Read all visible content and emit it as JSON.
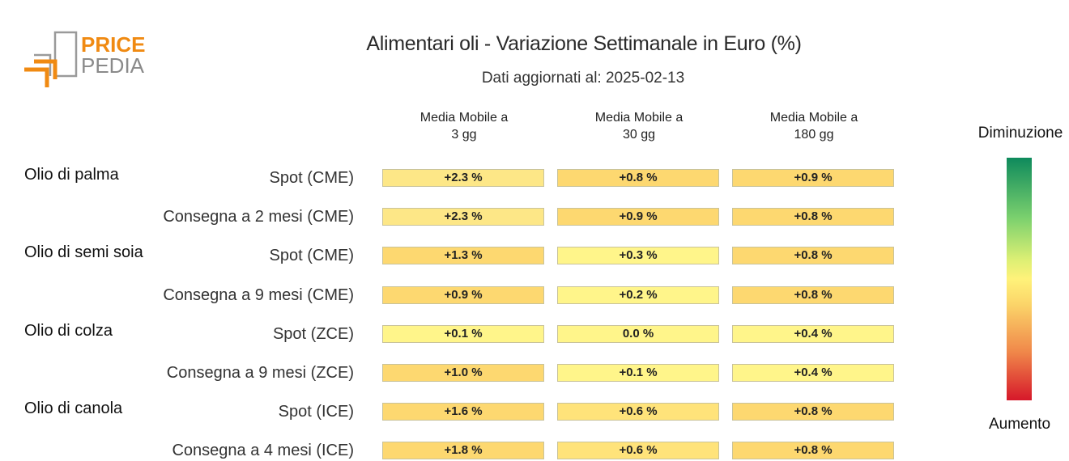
{
  "logo": {
    "text_top": "PRICE",
    "text_bottom": "PEDIA"
  },
  "chart_data": {
    "type": "table",
    "title": "Alimentari oli - Variazione Settimanale in Euro (%)",
    "subtitle": "Dati aggiornati al: 2025-02-13",
    "columns": [
      "Media Mobile a\n3 gg",
      "Media Mobile a\n30 gg",
      "Media Mobile a\n180 gg"
    ],
    "groups": [
      {
        "name": "Olio di palma",
        "rows": [
          {
            "label": "Spot (CME)",
            "values": [
              2.3,
              0.8,
              0.9
            ],
            "display": [
              "+2.3 %",
              "+0.8 %",
              "+0.9 %"
            ]
          },
          {
            "label": "Consegna a 2 mesi (CME)",
            "values": [
              2.3,
              0.9,
              0.8
            ],
            "display": [
              "+2.3 %",
              "+0.9 %",
              "+0.8 %"
            ]
          }
        ]
      },
      {
        "name": "Olio di semi soia",
        "rows": [
          {
            "label": "Spot (CME)",
            "values": [
              1.3,
              0.3,
              0.8
            ],
            "display": [
              "+1.3 %",
              "+0.3 %",
              "+0.8 %"
            ]
          },
          {
            "label": "Consegna a 9 mesi (CME)",
            "values": [
              0.9,
              0.2,
              0.8
            ],
            "display": [
              "+0.9 %",
              "+0.2 %",
              "+0.8 %"
            ]
          }
        ]
      },
      {
        "name": "Olio di colza",
        "rows": [
          {
            "label": "Spot (ZCE)",
            "values": [
              0.1,
              0.0,
              0.4
            ],
            "display": [
              "+0.1 %",
              "0.0 %",
              "+0.4 %"
            ]
          },
          {
            "label": "Consegna a 9 mesi (ZCE)",
            "values": [
              1.0,
              0.1,
              0.4
            ],
            "display": [
              "+1.0 %",
              "+0.1 %",
              "+0.4 %"
            ]
          }
        ]
      },
      {
        "name": "Olio di canola",
        "rows": [
          {
            "label": "Spot (ICE)",
            "values": [
              1.6,
              0.6,
              0.8
            ],
            "display": [
              "+1.6 %",
              "+0.6 %",
              "+0.8 %"
            ]
          },
          {
            "label": "Consegna a 4 mesi (ICE)",
            "values": [
              1.8,
              0.6,
              0.8
            ],
            "display": [
              "+1.8 %",
              "+0.6 %",
              "+0.8 %"
            ]
          }
        ]
      }
    ],
    "legend": {
      "top_label": "Diminuzione",
      "bottom_label": "Aumento"
    },
    "colors": {
      "low": "#fff58a",
      "mid": "#ffe37a",
      "high": "#fdd870",
      "decrease": "#0e8a5c",
      "increase": "#d6182a"
    }
  }
}
